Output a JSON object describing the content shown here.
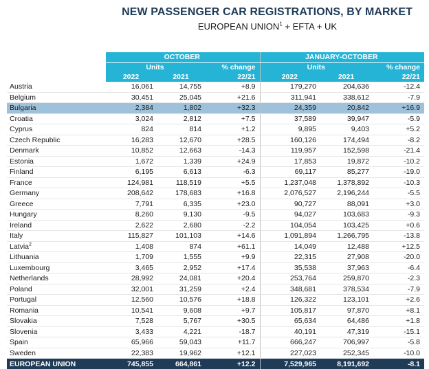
{
  "header": {
    "title": "NEW PASSENGER CAR REGISTRATIONS, BY MARKET",
    "subtitle_pre": "EUROPEAN UNION",
    "subtitle_sup": "1",
    "subtitle_post": " + EFTA + UK"
  },
  "table": {
    "group_october": "OCTOBER",
    "group_ytd": "JANUARY-OCTOBER",
    "units": "Units",
    "pct_change": "% change",
    "y2022": "2022",
    "y2021": "2021",
    "period": "22/21",
    "rows": [
      {
        "country": "Austria",
        "sup": "",
        "o22": "16,061",
        "o21": "14,755",
        "oc": "+8.9",
        "y22": "179,270",
        "y21": "204,636",
        "yc": "-12.4"
      },
      {
        "country": "Belgium",
        "sup": "",
        "o22": "30,451",
        "o21": "25,045",
        "oc": "+21.6",
        "y22": "311,941",
        "y21": "338,612",
        "yc": "-7.9"
      },
      {
        "country": "Bulgaria",
        "sup": "",
        "o22": "2,384",
        "o21": "1,802",
        "oc": "+32.3",
        "y22": "24,359",
        "y21": "20,842",
        "yc": "+16.9",
        "highlight": true
      },
      {
        "country": "Croatia",
        "sup": "",
        "o22": "3,024",
        "o21": "2,812",
        "oc": "+7.5",
        "y22": "37,589",
        "y21": "39,947",
        "yc": "-5.9"
      },
      {
        "country": "Cyprus",
        "sup": "",
        "o22": "824",
        "o21": "814",
        "oc": "+1.2",
        "y22": "9,895",
        "y21": "9,403",
        "yc": "+5.2"
      },
      {
        "country": "Czech Republic",
        "sup": "",
        "o22": "16,283",
        "o21": "12,670",
        "oc": "+28.5",
        "y22": "160,126",
        "y21": "174,494",
        "yc": "-8.2"
      },
      {
        "country": "Denmark",
        "sup": "",
        "o22": "10,852",
        "o21": "12,663",
        "oc": "-14.3",
        "y22": "119,957",
        "y21": "152,598",
        "yc": "-21.4"
      },
      {
        "country": "Estonia",
        "sup": "",
        "o22": "1,672",
        "o21": "1,339",
        "oc": "+24.9",
        "y22": "17,853",
        "y21": "19,872",
        "yc": "-10.2"
      },
      {
        "country": "Finland",
        "sup": "",
        "o22": "6,195",
        "o21": "6,613",
        "oc": "-6.3",
        "y22": "69,117",
        "y21": "85,277",
        "yc": "-19.0"
      },
      {
        "country": "France",
        "sup": "",
        "o22": "124,981",
        "o21": "118,519",
        "oc": "+5.5",
        "y22": "1,237,048",
        "y21": "1,378,892",
        "yc": "-10.3"
      },
      {
        "country": "Germany",
        "sup": "",
        "o22": "208,642",
        "o21": "178,683",
        "oc": "+16.8",
        "y22": "2,076,527",
        "y21": "2,196,244",
        "yc": "-5.5"
      },
      {
        "country": "Greece",
        "sup": "",
        "o22": "7,791",
        "o21": "6,335",
        "oc": "+23.0",
        "y22": "90,727",
        "y21": "88,091",
        "yc": "+3.0"
      },
      {
        "country": "Hungary",
        "sup": "",
        "o22": "8,260",
        "o21": "9,130",
        "oc": "-9.5",
        "y22": "94,027",
        "y21": "103,683",
        "yc": "-9.3"
      },
      {
        "country": "Ireland",
        "sup": "",
        "o22": "2,622",
        "o21": "2,680",
        "oc": "-2.2",
        "y22": "104,054",
        "y21": "103,425",
        "yc": "+0.6"
      },
      {
        "country": "Italy",
        "sup": "",
        "o22": "115,827",
        "o21": "101,103",
        "oc": "+14.6",
        "y22": "1,091,894",
        "y21": "1,266,795",
        "yc": "-13.8"
      },
      {
        "country": "Latvia",
        "sup": "2",
        "o22": "1,408",
        "o21": "874",
        "oc": "+61.1",
        "y22": "14,049",
        "y21": "12,488",
        "yc": "+12.5"
      },
      {
        "country": "Lithuania",
        "sup": "",
        "o22": "1,709",
        "o21": "1,555",
        "oc": "+9.9",
        "y22": "22,315",
        "y21": "27,908",
        "yc": "-20.0"
      },
      {
        "country": "Luxembourg",
        "sup": "",
        "o22": "3,465",
        "o21": "2,952",
        "oc": "+17.4",
        "y22": "35,538",
        "y21": "37,963",
        "yc": "-6.4"
      },
      {
        "country": "Netherlands",
        "sup": "",
        "o22": "28,992",
        "o21": "24,081",
        "oc": "+20.4",
        "y22": "253,764",
        "y21": "259,870",
        "yc": "-2.3"
      },
      {
        "country": "Poland",
        "sup": "",
        "o22": "32,001",
        "o21": "31,259",
        "oc": "+2.4",
        "y22": "348,681",
        "y21": "378,534",
        "yc": "-7.9"
      },
      {
        "country": "Portugal",
        "sup": "",
        "o22": "12,560",
        "o21": "10,576",
        "oc": "+18.8",
        "y22": "126,322",
        "y21": "123,101",
        "yc": "+2.6"
      },
      {
        "country": "Romania",
        "sup": "",
        "o22": "10,541",
        "o21": "9,608",
        "oc": "+9.7",
        "y22": "105,817",
        "y21": "97,870",
        "yc": "+8.1"
      },
      {
        "country": "Slovakia",
        "sup": "",
        "o22": "7,528",
        "o21": "5,767",
        "oc": "+30.5",
        "y22": "65,634",
        "y21": "64,486",
        "yc": "+1.8"
      },
      {
        "country": "Slovenia",
        "sup": "",
        "o22": "3,433",
        "o21": "4,221",
        "oc": "-18.7",
        "y22": "40,191",
        "y21": "47,319",
        "yc": "-15.1"
      },
      {
        "country": "Spain",
        "sup": "",
        "o22": "65,966",
        "o21": "59,043",
        "oc": "+11.7",
        "y22": "666,247",
        "y21": "706,997",
        "yc": "-5.8"
      },
      {
        "country": "Sweden",
        "sup": "",
        "o22": "22,383",
        "o21": "19,962",
        "oc": "+12.1",
        "y22": "227,023",
        "y21": "252,345",
        "yc": "-10.0"
      }
    ],
    "total": {
      "country": "EUROPEAN UNION",
      "o22": "745,855",
      "o21": "664,861",
      "oc": "+12.2",
      "y22": "7,529,965",
      "y21": "8,191,692",
      "yc": "-8.1"
    }
  },
  "colors": {
    "header_accent": "#26b4d6",
    "title": "#1f3b57",
    "highlight_row": "#9ec2dc",
    "total_row": "#1f3b57"
  }
}
